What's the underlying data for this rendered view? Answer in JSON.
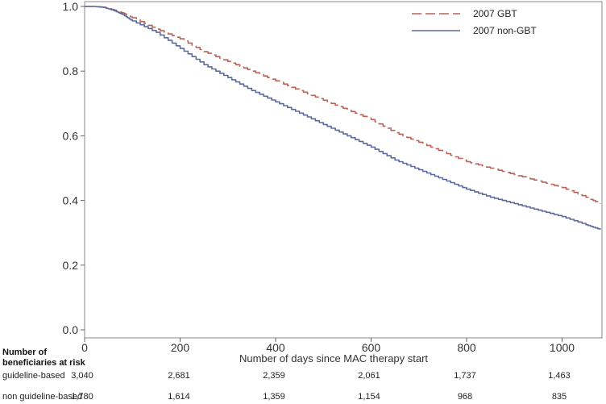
{
  "chart_data": {
    "type": "line",
    "title": "",
    "xlabel": "Number of days since MAC therapy start",
    "ylabel": "",
    "xlim": [
      0,
      1080
    ],
    "ylim": [
      0.0,
      1.0
    ],
    "x_ticks": [
      0,
      200,
      400,
      600,
      800,
      1000
    ],
    "y_ticks": [
      0.0,
      0.2,
      0.4,
      0.6,
      0.8,
      1.0
    ],
    "y_tick_labels": [
      "0.0",
      "0.2",
      "0.4",
      "0.6",
      "0.8",
      "1.0"
    ],
    "grid": false,
    "legend_position": "top-right",
    "series": [
      {
        "name": "2007 GBT",
        "style": "dashed",
        "color": "#b5655a",
        "x": [
          0,
          20,
          40,
          60,
          80,
          100,
          150,
          200,
          250,
          300,
          350,
          400,
          450,
          500,
          550,
          600,
          650,
          700,
          750,
          800,
          850,
          900,
          950,
          1000,
          1050,
          1080
        ],
        "y": [
          1.0,
          1.0,
          0.998,
          0.99,
          0.98,
          0.965,
          0.93,
          0.9,
          0.86,
          0.83,
          0.8,
          0.77,
          0.74,
          0.71,
          0.68,
          0.65,
          0.61,
          0.58,
          0.55,
          0.52,
          0.5,
          0.48,
          0.46,
          0.44,
          0.41,
          0.39
        ]
      },
      {
        "name": "2007 non-GBT",
        "style": "solid",
        "color": "#5b6a9a",
        "x": [
          0,
          20,
          40,
          60,
          80,
          100,
          150,
          200,
          250,
          300,
          350,
          400,
          450,
          500,
          550,
          600,
          650,
          700,
          750,
          800,
          850,
          900,
          950,
          1000,
          1050,
          1080
        ],
        "y": [
          1.0,
          1.0,
          0.997,
          0.988,
          0.975,
          0.955,
          0.92,
          0.87,
          0.82,
          0.78,
          0.74,
          0.705,
          0.67,
          0.635,
          0.6,
          0.565,
          0.525,
          0.495,
          0.465,
          0.435,
          0.41,
          0.39,
          0.37,
          0.35,
          0.325,
          0.31
        ]
      }
    ]
  },
  "risk_table": {
    "title_line1": "Number of",
    "title_line2": "beneficiaries at risk",
    "rows": [
      {
        "label": "guideline-based",
        "values": [
          "3,040",
          "2,681",
          "2,359",
          "2,061",
          "1,737",
          "1,463"
        ]
      },
      {
        "label": "non guideline-based",
        "values": [
          "1,780",
          "1,614",
          "1,359",
          "1,154",
          "968",
          "835"
        ]
      }
    ]
  }
}
